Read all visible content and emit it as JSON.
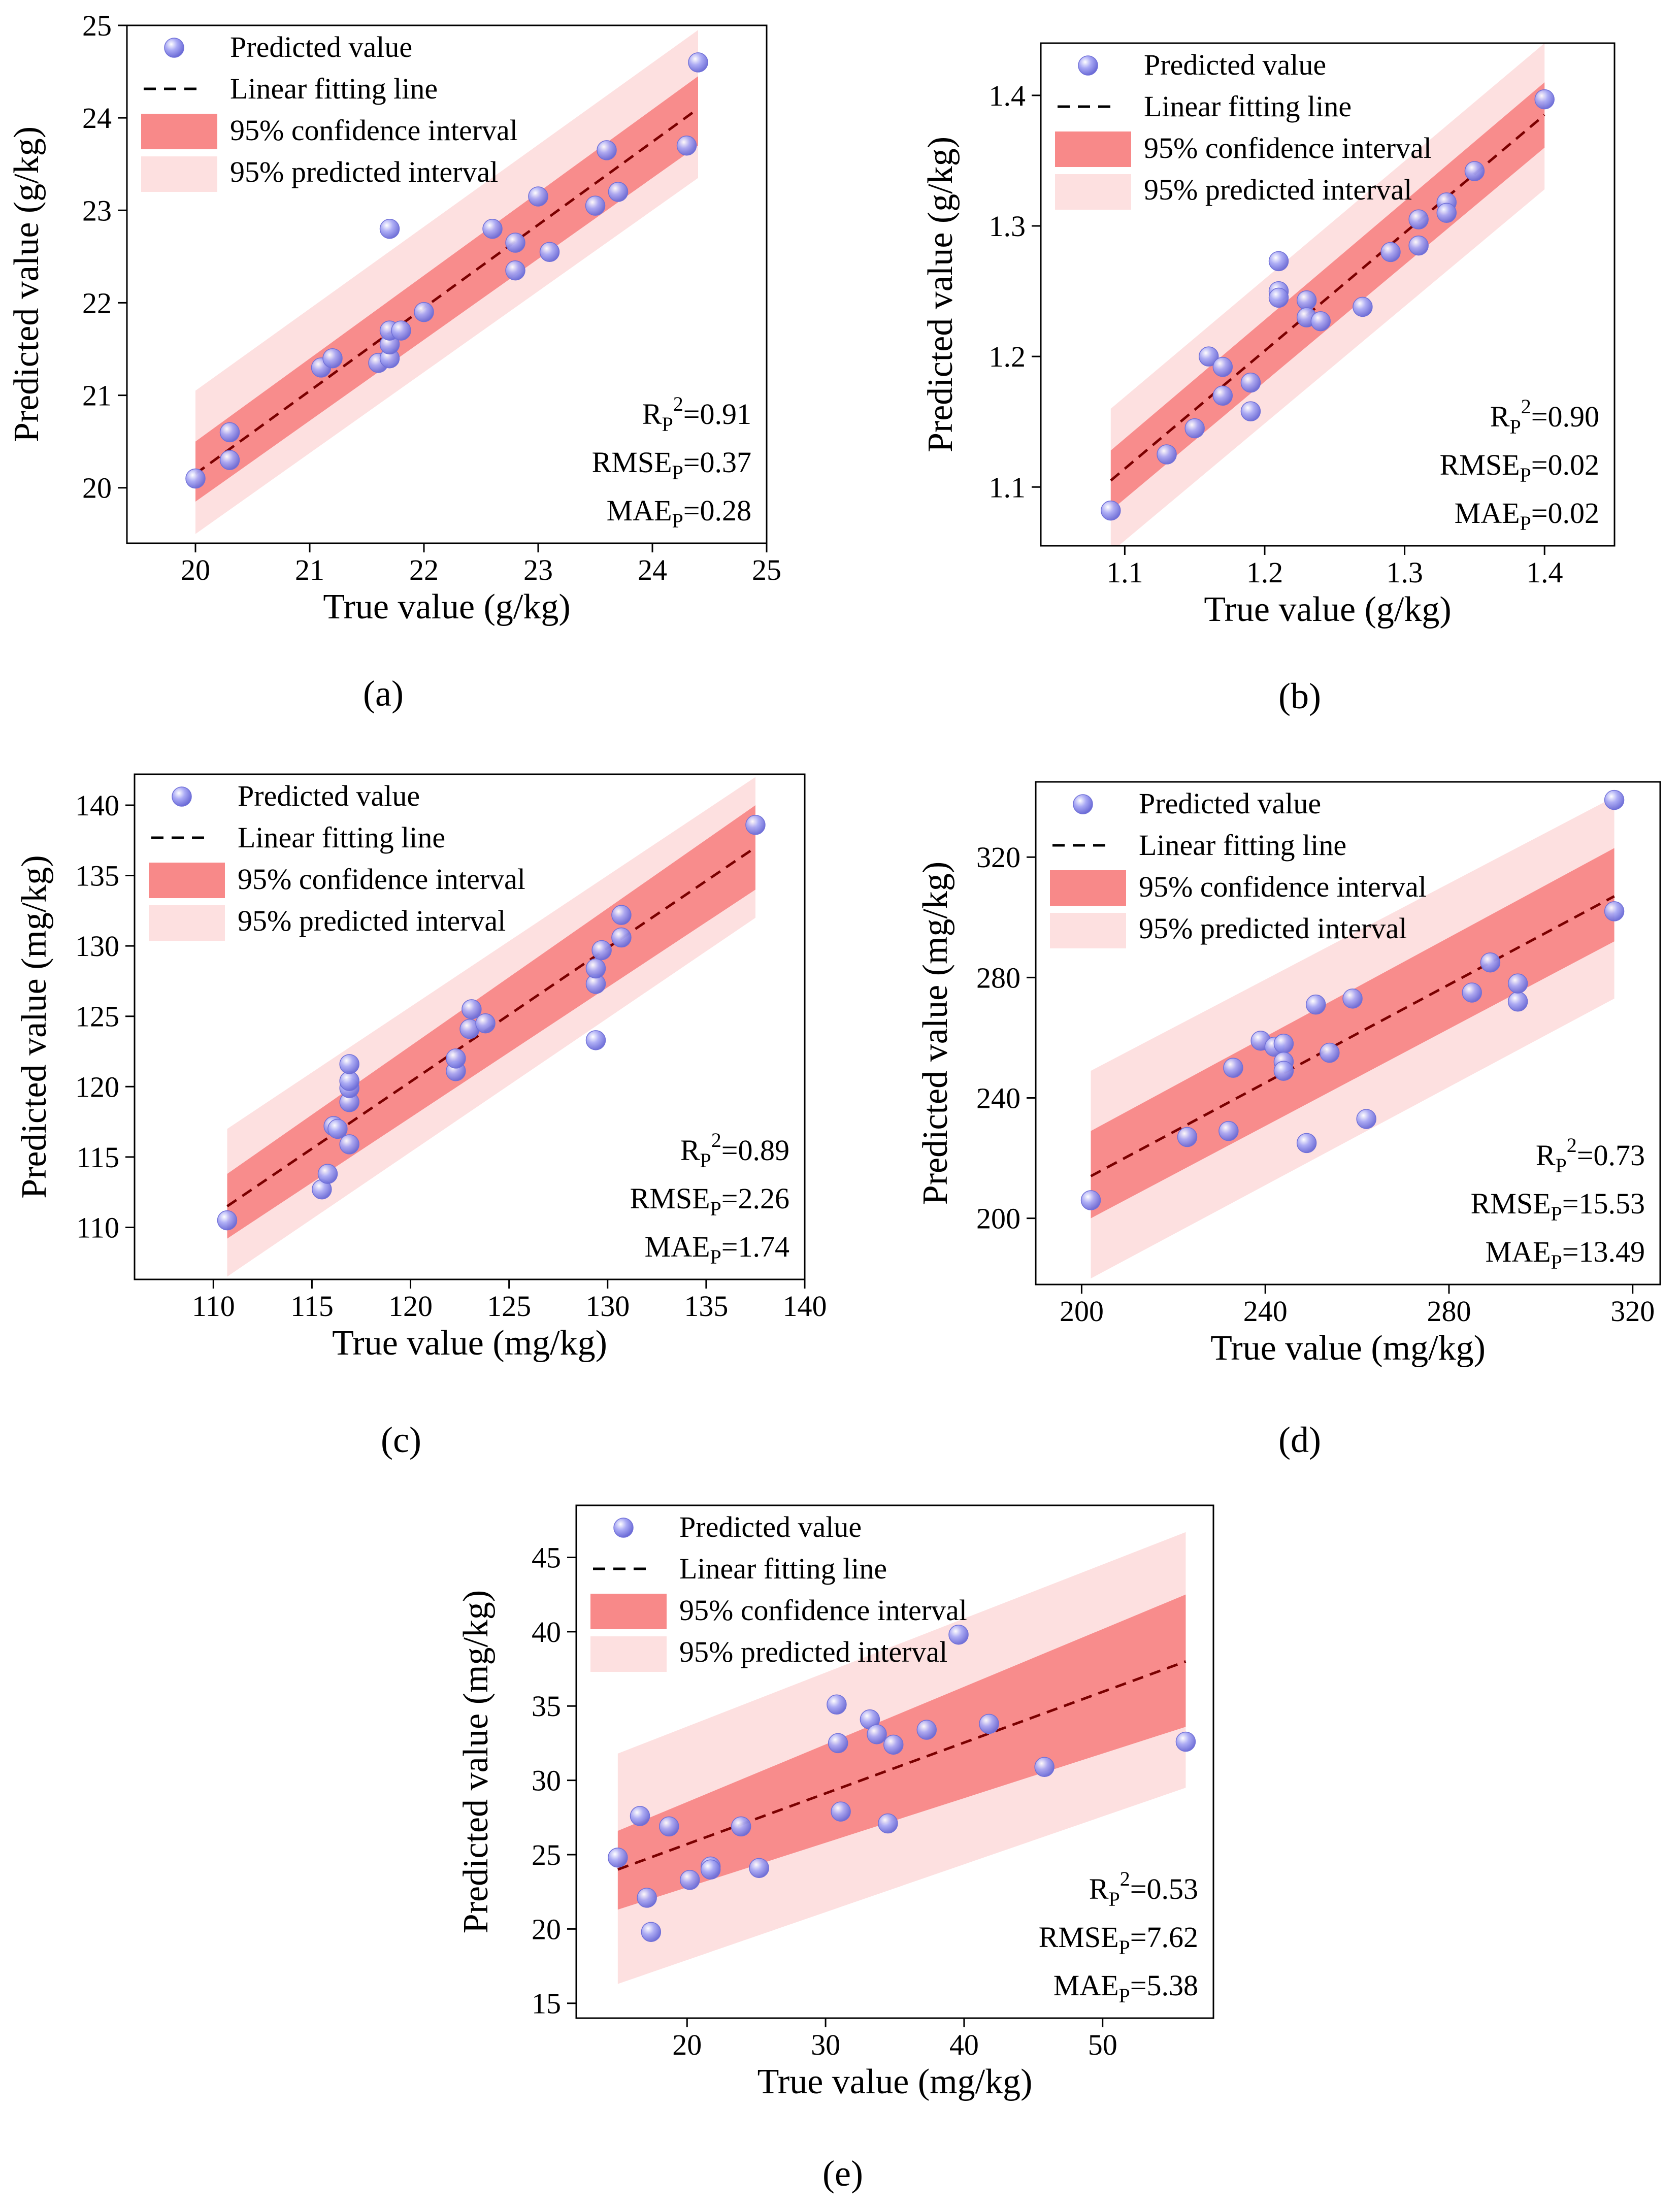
{
  "colors": {
    "point_fill": "#9a9af2",
    "point_edge": "#7070d8",
    "fit_line": "#7a0000",
    "confidence_band": "#f77c7c",
    "prediction_band": "#fde0e0"
  },
  "legend": {
    "predicted": "Predicted value",
    "fit": "Linear fitting line",
    "ci": "95% confidence interval",
    "pi": "95% predicted interval"
  },
  "chart_data": [
    {
      "type": "scatter",
      "caption": "(a)",
      "xlabel": "True value (g/kg)",
      "ylabel": "Predicted value (g/kg)",
      "xlim": [
        19.4,
        25.0
      ],
      "ylim": [
        19.4,
        25.0
      ],
      "xticks": [
        20,
        21,
        22,
        23,
        24,
        25
      ],
      "yticks": [
        20,
        21,
        22,
        23,
        24,
        25
      ],
      "tick_decimals": 0,
      "legend_position": "top-left",
      "fit": {
        "x": [
          20.0,
          24.4
        ],
        "y": [
          20.15,
          24.1
        ]
      },
      "ci": {
        "x": [
          20.0,
          24.4
        ],
        "lower": [
          19.85,
          23.7
        ],
        "upper": [
          20.5,
          24.45
        ]
      },
      "pi": {
        "x": [
          20.0,
          24.4
        ],
        "lower": [
          19.5,
          23.35
        ],
        "upper": [
          21.05,
          24.95
        ]
      },
      "stats": {
        "r2": {
          "main": "R",
          "sub": "P",
          "sup": "2",
          "value": "=0.91"
        },
        "rmse": {
          "main": "RMSE",
          "sub": "P",
          "value": "=0.37"
        },
        "mae": {
          "main": "MAE",
          "sub": "P",
          "value": "=0.28"
        }
      },
      "points": [
        [
          20.0,
          20.1
        ],
        [
          20.3,
          20.6
        ],
        [
          20.3,
          20.3
        ],
        [
          21.1,
          21.3
        ],
        [
          21.2,
          21.4
        ],
        [
          21.6,
          21.35
        ],
        [
          21.7,
          21.4
        ],
        [
          21.7,
          21.55
        ],
        [
          21.7,
          21.7
        ],
        [
          21.8,
          21.7
        ],
        [
          22.0,
          21.9
        ],
        [
          21.7,
          22.8
        ],
        [
          22.6,
          22.8
        ],
        [
          22.8,
          22.65
        ],
        [
          22.8,
          22.35
        ],
        [
          23.0,
          23.15
        ],
        [
          23.1,
          22.55
        ],
        [
          23.5,
          23.05
        ],
        [
          23.6,
          23.65
        ],
        [
          23.7,
          23.2
        ],
        [
          24.3,
          23.7
        ],
        [
          24.4,
          24.6
        ]
      ]
    },
    {
      "type": "scatter",
      "caption": "(b)",
      "xlabel": "True value (g/kg)",
      "ylabel": "Predicted value (g/kg)",
      "xlim": [
        1.04,
        1.45
      ],
      "ylim": [
        1.055,
        1.44
      ],
      "xticks": [
        1.1,
        1.2,
        1.3,
        1.4
      ],
      "yticks": [
        1.1,
        1.2,
        1.3,
        1.4
      ],
      "tick_decimals": 1,
      "legend_position": "top-left",
      "fit": {
        "x": [
          1.09,
          1.4
        ],
        "y": [
          1.105,
          1.385
        ]
      },
      "ci": {
        "x": [
          1.09,
          1.4
        ],
        "lower": [
          1.082,
          1.36
        ],
        "upper": [
          1.128,
          1.41
        ]
      },
      "pi": {
        "x": [
          1.09,
          1.4
        ],
        "lower": [
          1.05,
          1.328
        ],
        "upper": [
          1.16,
          1.44
        ]
      },
      "stats": {
        "r2": {
          "main": "R",
          "sub": "P",
          "sup": "2",
          "value": "=0.90"
        },
        "rmse": {
          "main": "RMSE",
          "sub": "P",
          "value": "=0.02"
        },
        "mae": {
          "main": "MAE",
          "sub": "P",
          "value": "=0.02"
        }
      },
      "points": [
        [
          1.09,
          1.082
        ],
        [
          1.13,
          1.125
        ],
        [
          1.15,
          1.145
        ],
        [
          1.16,
          1.2
        ],
        [
          1.17,
          1.192
        ],
        [
          1.17,
          1.17
        ],
        [
          1.19,
          1.18
        ],
        [
          1.19,
          1.158
        ],
        [
          1.21,
          1.273
        ],
        [
          1.21,
          1.25
        ],
        [
          1.21,
          1.245
        ],
        [
          1.23,
          1.243
        ],
        [
          1.23,
          1.23
        ],
        [
          1.24,
          1.227
        ],
        [
          1.27,
          1.238
        ],
        [
          1.29,
          1.28
        ],
        [
          1.31,
          1.305
        ],
        [
          1.31,
          1.285
        ],
        [
          1.33,
          1.318
        ],
        [
          1.33,
          1.31
        ],
        [
          1.35,
          1.342
        ],
        [
          1.4,
          1.397
        ]
      ]
    },
    {
      "type": "scatter",
      "caption": "(c)",
      "xlabel": "True value (mg/kg)",
      "ylabel": "Predicted value (mg/kg)",
      "xlim": [
        106.0,
        140.0
      ],
      "ylim": [
        106.3,
        142.2
      ],
      "xticks": [
        110,
        115,
        120,
        125,
        130,
        135,
        140
      ],
      "yticks": [
        110,
        115,
        120,
        125,
        130,
        135,
        140
      ],
      "tick_decimals": 0,
      "legend_position": "top-left",
      "fit": {
        "x": [
          110.7,
          137.5
        ],
        "y": [
          111.5,
          137.0
        ]
      },
      "ci": {
        "x": [
          110.7,
          137.5
        ],
        "lower": [
          109.2,
          134.0
        ],
        "upper": [
          113.8,
          140.0
        ]
      },
      "pi": {
        "x": [
          110.7,
          137.5
        ],
        "lower": [
          106.5,
          132.0
        ],
        "upper": [
          117.0,
          142.0
        ]
      },
      "stats": {
        "r2": {
          "main": "R",
          "sub": "P",
          "sup": "2",
          "value": "=0.89"
        },
        "rmse": {
          "main": "RMSE",
          "sub": "P",
          "value": "=2.26"
        },
        "mae": {
          "main": "MAE",
          "sub": "P",
          "value": "=1.74"
        }
      },
      "points": [
        [
          110.7,
          110.5
        ],
        [
          115.5,
          112.7
        ],
        [
          115.8,
          113.8
        ],
        [
          116.1,
          117.2
        ],
        [
          116.3,
          117.0
        ],
        [
          116.9,
          115.9
        ],
        [
          116.9,
          118.9
        ],
        [
          116.9,
          119.9
        ],
        [
          116.9,
          120.4
        ],
        [
          116.9,
          121.6
        ],
        [
          122.3,
          121.1
        ],
        [
          122.3,
          122.0
        ],
        [
          123.0,
          124.1
        ],
        [
          123.1,
          125.5
        ],
        [
          123.8,
          124.5
        ],
        [
          129.4,
          123.3
        ],
        [
          129.4,
          127.3
        ],
        [
          129.4,
          128.4
        ],
        [
          129.7,
          129.7
        ],
        [
          130.7,
          130.6
        ],
        [
          130.7,
          132.2
        ],
        [
          137.5,
          138.6
        ]
      ]
    },
    {
      "type": "scatter",
      "caption": "(d)",
      "xlabel": "True value (mg/kg)",
      "ylabel": "Predicted value (mg/kg)",
      "xlim": [
        190.0,
        326.0
      ],
      "ylim": [
        178.0,
        345.0
      ],
      "xticks": [
        200,
        240,
        280,
        320
      ],
      "yticks": [
        200,
        240,
        280,
        320
      ],
      "tick_decimals": 0,
      "legend_position": "top-left",
      "fit": {
        "x": [
          202.0,
          316.0
        ],
        "y": [
          214.0,
          307.0
        ]
      },
      "ci": {
        "x": [
          202.0,
          316.0
        ],
        "lower": [
          200.0,
          292.0
        ],
        "upper": [
          229.0,
          323.0
        ]
      },
      "pi": {
        "x": [
          202.0,
          316.0
        ],
        "lower": [
          180.0,
          273.0
        ],
        "upper": [
          249.0,
          340.0
        ]
      },
      "stats": {
        "r2": {
          "main": "R",
          "sub": "P",
          "sup": "2",
          "value": "=0.73"
        },
        "rmse": {
          "main": "RMSE",
          "sub": "P",
          "value": "=15.53"
        },
        "mae": {
          "main": "MAE",
          "sub": "P",
          "value": "=13.49"
        }
      },
      "points": [
        [
          202,
          206
        ],
        [
          223,
          227
        ],
        [
          232,
          229
        ],
        [
          233,
          250
        ],
        [
          239,
          259
        ],
        [
          242,
          257
        ],
        [
          244,
          258
        ],
        [
          244,
          252
        ],
        [
          244,
          249
        ],
        [
          249,
          225
        ],
        [
          251,
          271
        ],
        [
          254,
          255
        ],
        [
          259,
          273
        ],
        [
          262,
          233
        ],
        [
          285,
          275
        ],
        [
          289,
          285
        ],
        [
          295,
          272
        ],
        [
          295,
          278
        ],
        [
          316,
          339
        ],
        [
          316,
          302
        ]
      ]
    },
    {
      "type": "scatter",
      "caption": "(e)",
      "xlabel": "True value (mg/kg)",
      "ylabel": "Predicted value (mg/kg)",
      "xlim": [
        12.0,
        58.0
      ],
      "ylim": [
        14.0,
        48.5
      ],
      "xticks": [
        20,
        30,
        40,
        50
      ],
      "yticks": [
        15,
        20,
        25,
        30,
        35,
        40,
        45
      ],
      "tick_decimals": 0,
      "legend_position": "top-left",
      "fit": {
        "x": [
          15.0,
          56.0
        ],
        "y": [
          24.0,
          38.0
        ]
      },
      "ci": {
        "x": [
          15.0,
          56.0
        ],
        "lower": [
          21.3,
          33.6
        ],
        "upper": [
          26.6,
          42.5
        ]
      },
      "pi": {
        "x": [
          15.0,
          56.0
        ],
        "lower": [
          16.3,
          29.5
        ],
        "upper": [
          31.8,
          46.7
        ]
      },
      "stats": {
        "r2": {
          "main": "R",
          "sub": "P",
          "sup": "2",
          "value": "=0.53"
        },
        "rmse": {
          "main": "RMSE",
          "sub": "P",
          "value": "=7.62"
        },
        "mae": {
          "main": "MAE",
          "sub": "P",
          "value": "=5.38"
        }
      },
      "points": [
        [
          15.0,
          24.8
        ],
        [
          16.6,
          27.6
        ],
        [
          17.1,
          22.1
        ],
        [
          17.4,
          19.8
        ],
        [
          18.7,
          26.9
        ],
        [
          20.2,
          23.3
        ],
        [
          21.7,
          24.2
        ],
        [
          21.7,
          24.0
        ],
        [
          23.9,
          26.9
        ],
        [
          25.2,
          24.1
        ],
        [
          30.8,
          35.1
        ],
        [
          30.9,
          32.5
        ],
        [
          31.1,
          27.9
        ],
        [
          33.2,
          34.1
        ],
        [
          33.7,
          33.1
        ],
        [
          34.5,
          27.1
        ],
        [
          34.9,
          32.4
        ],
        [
          37.3,
          33.4
        ],
        [
          39.6,
          39.8
        ],
        [
          41.8,
          33.8
        ],
        [
          45.8,
          30.9
        ],
        [
          56.0,
          32.6
        ]
      ]
    }
  ]
}
